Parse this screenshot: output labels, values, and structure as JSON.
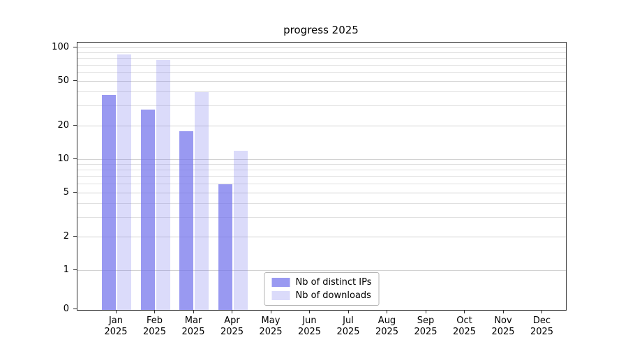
{
  "chart_data": {
    "type": "bar",
    "title": "progress 2025",
    "year_label": "2025",
    "categories": [
      "Jan",
      "Feb",
      "Mar",
      "Apr",
      "May",
      "Jun",
      "Jul",
      "Aug",
      "Sep",
      "Oct",
      "Nov",
      "Dec"
    ],
    "series": [
      {
        "name": "Nb of distinct IPs",
        "color": "#6e6eeb",
        "alpha": 0.7,
        "values": [
          38,
          28,
          18,
          6,
          0,
          0,
          0,
          0,
          0,
          0,
          0,
          0
        ]
      },
      {
        "name": "Nb of downloads",
        "color": "#6e6eeb",
        "alpha": 0.25,
        "values": [
          88,
          78,
          40,
          12,
          0,
          0,
          0,
          0,
          0,
          0,
          0,
          0
        ]
      }
    ],
    "yticks": [
      0,
      1,
      2,
      5,
      10,
      20,
      50,
      100
    ],
    "ylim": [
      0,
      110
    ],
    "scale": "log-with-zero-baseline",
    "grid": "horizontal-log-minor",
    "legend_position": "lower-center",
    "axis_color": "#2a2a2a",
    "gridline_color": "#e0e0e0"
  }
}
